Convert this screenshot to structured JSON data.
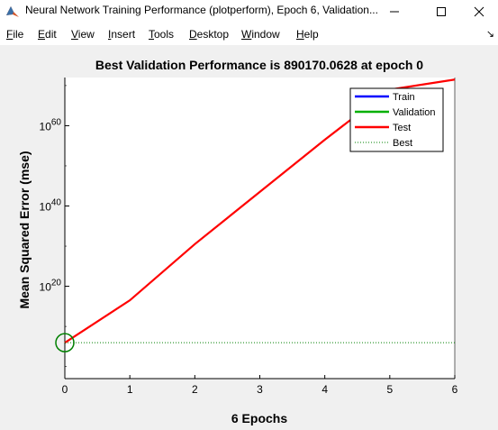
{
  "window": {
    "title": "Neural Network Training Performance (plotperform), Epoch 6, Validation..."
  },
  "menu": {
    "items": [
      {
        "label": "File",
        "accel": "F",
        "rest": "ile"
      },
      {
        "label": "Edit",
        "accel": "E",
        "rest": "dit"
      },
      {
        "label": "View",
        "accel": "V",
        "rest": "iew"
      },
      {
        "label": "Insert",
        "accel": "I",
        "rest": "nsert"
      },
      {
        "label": "Tools",
        "accel": "T",
        "rest": "ools"
      },
      {
        "label": "Desktop",
        "accel": "D",
        "rest": "esktop"
      },
      {
        "label": "Window",
        "accel": "W",
        "rest": "indow"
      },
      {
        "label": "Help",
        "accel": "H",
        "rest": "elp"
      }
    ],
    "overflow_arrow": "↘"
  },
  "chart_data": {
    "type": "line",
    "title": "Best Validation Performance is 890170.0628 at epoch 0",
    "xlabel": "6 Epochs",
    "ylabel": "Mean Squared Error  (mse)",
    "xlim": [
      0,
      6
    ],
    "y_scale": "log",
    "ylim_log10": [
      -3,
      72
    ],
    "x_ticks": [
      "0",
      "1",
      "2",
      "3",
      "4",
      "5",
      "6"
    ],
    "y_ticks": [
      {
        "base": "10",
        "exp": "20",
        "log10": 20
      },
      {
        "base": "10",
        "exp": "40",
        "log10": 40
      },
      {
        "base": "10",
        "exp": "60",
        "log10": 60
      }
    ],
    "series": [
      {
        "name": "Train",
        "color": "#0000ff",
        "style": "solid",
        "x": [],
        "log10_y": []
      },
      {
        "name": "Validation",
        "color": "#00b000",
        "style": "solid",
        "x": [
          0
        ],
        "log10_y": [
          5.95
        ]
      },
      {
        "name": "Test",
        "color": "#ff0000",
        "style": "solid",
        "x": [
          0,
          1,
          2,
          3,
          4,
          5,
          6
        ],
        "log10_y": [
          5.95,
          16.5,
          30.5,
          43.5,
          56.5,
          69,
          71.5
        ]
      },
      {
        "name": "Best",
        "color": "#008000",
        "style": "dotted",
        "x": [
          0,
          6
        ],
        "log10_y": [
          5.95,
          5.95
        ]
      }
    ],
    "best_marker": {
      "x": 0,
      "log10_y": 5.95,
      "color": "#008000"
    },
    "legend_position": "top-right"
  }
}
